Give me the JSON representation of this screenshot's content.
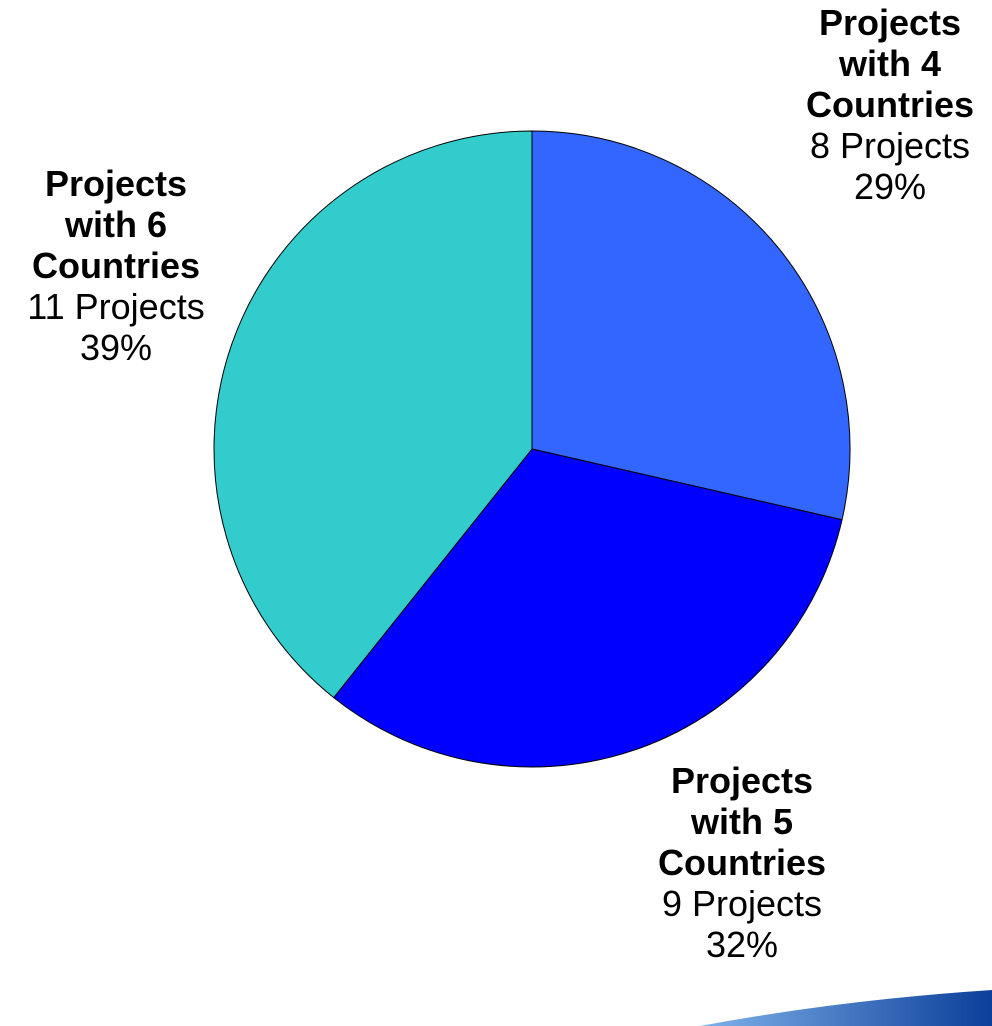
{
  "chart_data": {
    "type": "pie",
    "title": "",
    "start_angle_deg": 0,
    "direction": "clockwise",
    "slices": [
      {
        "name_lines": [
          "Projects",
          "with 4",
          "Countries"
        ],
        "value": 8,
        "value_label": "8 Projects",
        "percent": 29,
        "percent_label": "29%",
        "color": "#3366ff"
      },
      {
        "name_lines": [
          "Projects",
          "with 5",
          "Countries"
        ],
        "value": 9,
        "value_label": "9 Projects",
        "percent": 32,
        "percent_label": "32%",
        "color": "#0000ff"
      },
      {
        "name_lines": [
          "Projects",
          "with 6",
          "Countries"
        ],
        "value": 11,
        "value_label": "11 Projects",
        "percent": 39,
        "percent_label": "39%",
        "color": "#33cccc"
      }
    ]
  },
  "decoration": {
    "swoosh_color_dark": "#0b3f9a",
    "swoosh_color_light": "#7fb2ea"
  }
}
